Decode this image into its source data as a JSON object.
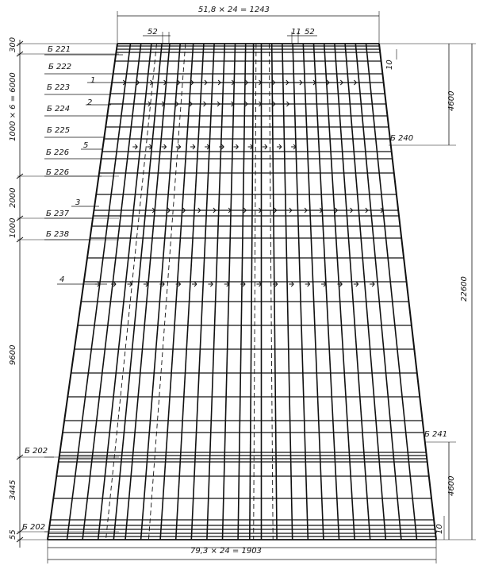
{
  "dimensions": {
    "top_width": "51,8 × 24 = 1243",
    "bottom_width": "79,3 × 24 = 1903",
    "top_spacing_left": "52",
    "top_spacing_mid": "11",
    "top_spacing_right": "52",
    "top_offset": "10",
    "bottom_offset": "10",
    "right_top_height": "4600",
    "right_bottom_height": "4600",
    "total_height": "22600",
    "left_300": "300",
    "left_6000": "1000 × 6 = 6000",
    "left_2000": "2000",
    "left_1000": "1000",
    "left_9600": "9600",
    "left_3445": "3445",
    "left_55": "55"
  },
  "bar_labels": [
    "Б 221",
    "Б 222",
    "Б 223",
    "Б 224",
    "Б 225",
    "Б 226",
    "Б 226",
    "Б 237",
    "Б 238",
    "Б 202",
    "Б 202"
  ],
  "right_labels": [
    "Б 240",
    "Б 241"
  ],
  "callouts": [
    "1",
    "2",
    "3",
    "4",
    "5"
  ]
}
